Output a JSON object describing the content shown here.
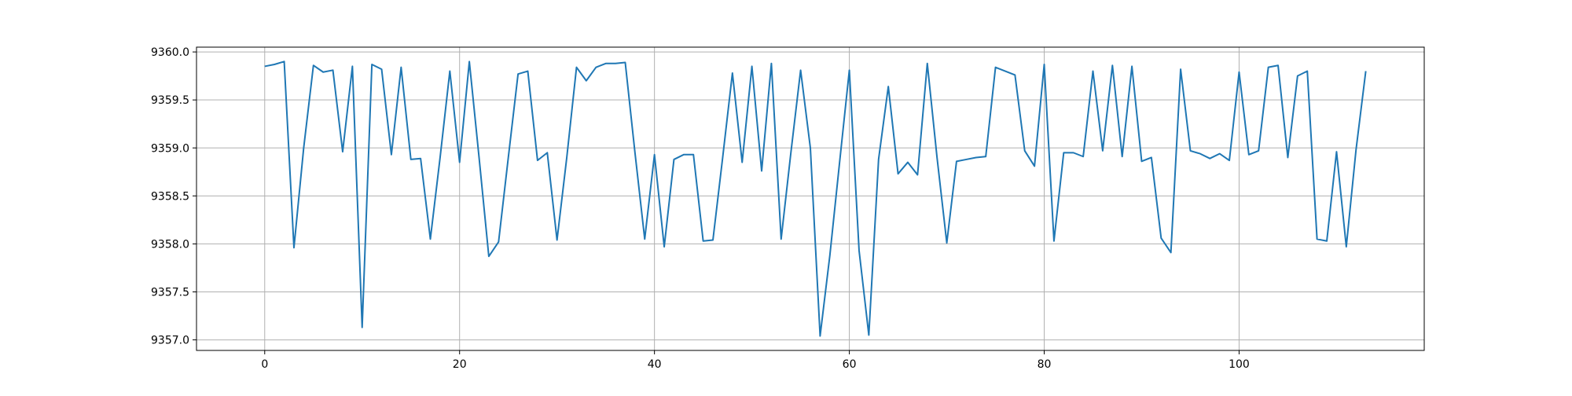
{
  "chart_data": {
    "type": "line",
    "title": "",
    "xlabel": "",
    "ylabel": "",
    "xlim": [
      -7,
      119
    ],
    "ylim": [
      9356.89,
      9360.05
    ],
    "grid": true,
    "x_ticks": [
      0,
      20,
      40,
      60,
      80,
      100
    ],
    "y_ticks": [
      9357.0,
      9357.5,
      9358.0,
      9358.5,
      9359.0,
      9359.5,
      9360.0
    ],
    "x_tick_labels": [
      "0",
      "20",
      "40",
      "60",
      "80",
      "100"
    ],
    "y_tick_labels": [
      "9357.0",
      "9357.5",
      "9358.0",
      "9358.5",
      "9359.0",
      "9359.5",
      "9360.0"
    ],
    "series": [
      {
        "color": "#1f77b4",
        "x": [
          0,
          1,
          2,
          3,
          4,
          5,
          6,
          7,
          8,
          9,
          10,
          11,
          12,
          13,
          14,
          15,
          16,
          17,
          18,
          19,
          20,
          21,
          22,
          23,
          24,
          25,
          26,
          27,
          28,
          29,
          30,
          31,
          32,
          33,
          34,
          35,
          36,
          37,
          38,
          39,
          40,
          41,
          42,
          43,
          44,
          45,
          46,
          47,
          48,
          49,
          50,
          51,
          52,
          53,
          54,
          55,
          56,
          57,
          58,
          59,
          60,
          61,
          62,
          63,
          64,
          65,
          66,
          67,
          68,
          69,
          70,
          71,
          72,
          73,
          74,
          75,
          76,
          77,
          78,
          79,
          80,
          81,
          82,
          83,
          84,
          85,
          86,
          87,
          88,
          89,
          90,
          91,
          92,
          93,
          94,
          95,
          96,
          97,
          98,
          99,
          100,
          101,
          102,
          103,
          104,
          105,
          106,
          107,
          108,
          109,
          110,
          111,
          112,
          113
        ],
        "values": [
          9359.85,
          9359.87,
          9359.9,
          9357.96,
          9359.0,
          9359.86,
          9359.79,
          9359.81,
          9358.96,
          9359.85,
          9357.13,
          9359.87,
          9359.82,
          9358.93,
          9359.84,
          9358.88,
          9358.89,
          9358.05,
          9358.9,
          9359.8,
          9358.85,
          9359.9,
          9358.9,
          9357.87,
          9358.02,
          9358.9,
          9359.77,
          9359.8,
          9358.87,
          9358.95,
          9358.04,
          9358.9,
          9359.84,
          9359.7,
          9359.84,
          9359.88,
          9359.88,
          9359.89,
          9358.95,
          9358.05,
          9358.93,
          9357.97,
          9358.88,
          9358.93,
          9358.93,
          9358.03,
          9358.04,
          9358.9,
          9359.78,
          9358.85,
          9359.85,
          9358.76,
          9359.88,
          9358.05,
          9358.95,
          9359.81,
          9359.0,
          9357.04,
          9357.88,
          9358.85,
          9359.81,
          9357.93,
          9357.05,
          9358.88,
          9359.64,
          9358.73,
          9358.85,
          9358.72,
          9359.88,
          9358.9,
          9358.01,
          9358.86,
          9358.88,
          9358.9,
          9358.91,
          9359.84,
          9359.8,
          9359.76,
          9358.97,
          9358.81,
          9359.87,
          9358.03,
          9358.95,
          9358.95,
          9358.91,
          9359.8,
          9358.97,
          9359.86,
          9358.91,
          9359.85,
          9358.86,
          9358.9,
          9358.06,
          9357.91,
          9359.82,
          9358.97,
          9358.94,
          9358.89,
          9358.94,
          9358.87,
          9359.79,
          9358.93,
          9358.97,
          9359.84,
          9359.86,
          9358.9,
          9359.75,
          9359.8,
          9358.05,
          9358.03,
          9358.96,
          9357.97,
          9358.98,
          9359.8
        ]
      }
    ]
  }
}
